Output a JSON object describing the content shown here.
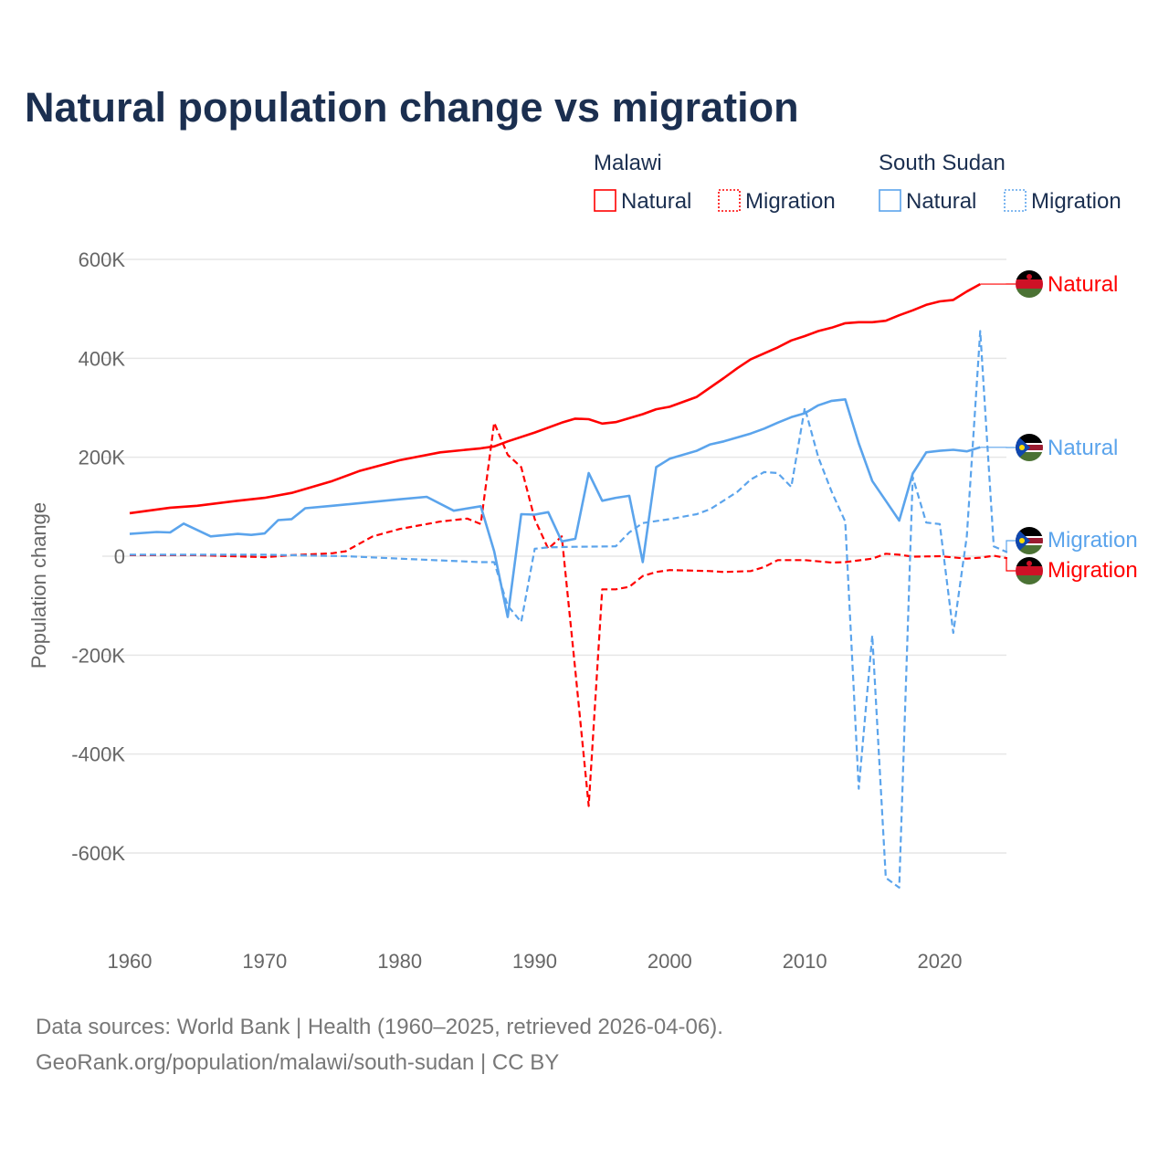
{
  "chart_data": {
    "type": "line",
    "title": "Natural population change vs migration",
    "ylabel": "Population change",
    "xlabel": "",
    "xlim": [
      1960,
      2025
    ],
    "ylim": [
      -600,
      600
    ],
    "y_unit": "thousands",
    "x_ticks": [
      "1960",
      "1970",
      "1980",
      "1990",
      "2000",
      "2010",
      "2020"
    ],
    "y_ticks": [
      {
        "v": 600,
        "label": "600K"
      },
      {
        "v": 400,
        "label": "400K"
      },
      {
        "v": 200,
        "label": "200K"
      },
      {
        "v": 0,
        "label": "0"
      },
      {
        "v": -200,
        "label": "-200K"
      },
      {
        "v": -400,
        "label": "-400K"
      },
      {
        "v": -600,
        "label": "-600K"
      }
    ],
    "grid": true,
    "legend": {
      "placement": "top-right",
      "groups": [
        {
          "country": "Malawi",
          "items": [
            "Natural",
            "Migration"
          ]
        },
        {
          "country": "South Sudan",
          "items": [
            "Natural",
            "Migration"
          ]
        }
      ]
    },
    "series": [
      {
        "name": "Malawi Natural",
        "label": "Natural",
        "color": "#ff0000",
        "dash": false,
        "points": [
          [
            1960,
            87
          ],
          [
            1963,
            98
          ],
          [
            1965,
            102
          ],
          [
            1968,
            112
          ],
          [
            1970,
            118
          ],
          [
            1972,
            128
          ],
          [
            1975,
            152
          ],
          [
            1977,
            172
          ],
          [
            1980,
            194
          ],
          [
            1983,
            210
          ],
          [
            1986,
            218
          ],
          [
            1987,
            222
          ],
          [
            1988,
            232
          ],
          [
            1990,
            250
          ],
          [
            1992,
            270
          ],
          [
            1993,
            278
          ],
          [
            1994,
            277
          ],
          [
            1995,
            268
          ],
          [
            1996,
            271
          ],
          [
            1998,
            287
          ],
          [
            1999,
            297
          ],
          [
            2000,
            302
          ],
          [
            2002,
            322
          ],
          [
            2004,
            360
          ],
          [
            2005,
            380
          ],
          [
            2006,
            398
          ],
          [
            2008,
            422
          ],
          [
            2009,
            436
          ],
          [
            2010,
            445
          ],
          [
            2011,
            455
          ],
          [
            2012,
            462
          ],
          [
            2013,
            471
          ],
          [
            2014,
            473
          ],
          [
            2015,
            473
          ],
          [
            2016,
            476
          ],
          [
            2017,
            487
          ],
          [
            2018,
            497
          ],
          [
            2019,
            508
          ],
          [
            2020,
            515
          ],
          [
            2021,
            518
          ],
          [
            2022,
            535
          ],
          [
            2023,
            550
          ]
        ]
      },
      {
        "name": "Malawi Migration",
        "label": "Migration",
        "color": "#ff0000",
        "dash": true,
        "points": [
          [
            1960,
            2
          ],
          [
            1965,
            2
          ],
          [
            1970,
            -2
          ],
          [
            1972,
            2
          ],
          [
            1975,
            6
          ],
          [
            1976,
            10
          ],
          [
            1978,
            40
          ],
          [
            1980,
            55
          ],
          [
            1983,
            70
          ],
          [
            1985,
            76
          ],
          [
            1986,
            65
          ],
          [
            1987,
            270
          ],
          [
            1988,
            205
          ],
          [
            1989,
            180
          ],
          [
            1990,
            75
          ],
          [
            1991,
            15
          ],
          [
            1992,
            40
          ],
          [
            1993,
            -230
          ],
          [
            1994,
            -505
          ],
          [
            1995,
            -67
          ],
          [
            1996,
            -67
          ],
          [
            1997,
            -62
          ],
          [
            1998,
            -40
          ],
          [
            1999,
            -32
          ],
          [
            2000,
            -28
          ],
          [
            2003,
            -30
          ],
          [
            2004,
            -32
          ],
          [
            2006,
            -30
          ],
          [
            2007,
            -22
          ],
          [
            2008,
            -8
          ],
          [
            2009,
            -8
          ],
          [
            2010,
            -8
          ],
          [
            2012,
            -13
          ],
          [
            2013,
            -12
          ],
          [
            2015,
            -5
          ],
          [
            2016,
            5
          ],
          [
            2017,
            3
          ],
          [
            2018,
            -1
          ],
          [
            2020,
            0
          ],
          [
            2022,
            -5
          ],
          [
            2023,
            -3
          ],
          [
            2024,
            1
          ],
          [
            2025,
            -4
          ]
        ]
      },
      {
        "name": "South Sudan Natural",
        "label": "Natural",
        "color": "#5ba4ec",
        "dash": false,
        "points": [
          [
            1960,
            45
          ],
          [
            1962,
            49
          ],
          [
            1963,
            48
          ],
          [
            1964,
            66
          ],
          [
            1966,
            40
          ],
          [
            1968,
            45
          ],
          [
            1969,
            43
          ],
          [
            1970,
            46
          ],
          [
            1971,
            73
          ],
          [
            1972,
            75
          ],
          [
            1973,
            97
          ],
          [
            1975,
            102
          ],
          [
            1980,
            115
          ],
          [
            1982,
            120
          ],
          [
            1984,
            92
          ],
          [
            1986,
            101
          ],
          [
            1987,
            10
          ],
          [
            1988,
            -123
          ],
          [
            1989,
            85
          ],
          [
            1990,
            84
          ],
          [
            1991,
            89
          ],
          [
            1992,
            30
          ],
          [
            1993,
            35
          ],
          [
            1994,
            168
          ],
          [
            1995,
            112
          ],
          [
            1996,
            118
          ],
          [
            1997,
            122
          ],
          [
            1998,
            -12
          ],
          [
            1999,
            180
          ],
          [
            2000,
            197
          ],
          [
            2002,
            213
          ],
          [
            2003,
            226
          ],
          [
            2004,
            232
          ],
          [
            2006,
            248
          ],
          [
            2007,
            258
          ],
          [
            2008,
            270
          ],
          [
            2009,
            281
          ],
          [
            2010,
            289
          ],
          [
            2011,
            305
          ],
          [
            2012,
            314
          ],
          [
            2013,
            317
          ],
          [
            2014,
            228
          ],
          [
            2015,
            152
          ],
          [
            2016,
            112
          ],
          [
            2017,
            72
          ],
          [
            2018,
            167
          ],
          [
            2019,
            210
          ],
          [
            2020,
            213
          ],
          [
            2021,
            215
          ],
          [
            2022,
            212
          ],
          [
            2023,
            220
          ]
        ]
      },
      {
        "name": "South Sudan Migration",
        "label": "Migration",
        "color": "#5ba4ec",
        "dash": true,
        "points": [
          [
            1960,
            3
          ],
          [
            1970,
            3
          ],
          [
            1976,
            0
          ],
          [
            1980,
            -5
          ],
          [
            1986,
            -12
          ],
          [
            1987,
            -12
          ],
          [
            1988,
            -100
          ],
          [
            1989,
            -133
          ],
          [
            1990,
            15
          ],
          [
            1991,
            18
          ],
          [
            1993,
            19
          ],
          [
            1996,
            20
          ],
          [
            1997,
            48
          ],
          [
            1998,
            67
          ],
          [
            2000,
            75
          ],
          [
            2002,
            85
          ],
          [
            2003,
            95
          ],
          [
            2005,
            130
          ],
          [
            2006,
            155
          ],
          [
            2007,
            170
          ],
          [
            2008,
            168
          ],
          [
            2009,
            140
          ],
          [
            2010,
            300
          ],
          [
            2011,
            200
          ],
          [
            2012,
            130
          ],
          [
            2013,
            70
          ],
          [
            2014,
            -470
          ],
          [
            2015,
            -160
          ],
          [
            2016,
            -650
          ],
          [
            2017,
            -670
          ],
          [
            2018,
            160
          ],
          [
            2019,
            68
          ],
          [
            2020,
            65
          ],
          [
            2021,
            -155
          ],
          [
            2022,
            40
          ],
          [
            2023,
            455
          ],
          [
            2024,
            20
          ],
          [
            2025,
            8
          ]
        ]
      }
    ]
  },
  "footer": {
    "source": "Data sources: World Bank | Health (1960–2025, retrieved 2026-04-06).",
    "link": "GeoRank.org/population/malawi/south-sudan | CC BY"
  }
}
